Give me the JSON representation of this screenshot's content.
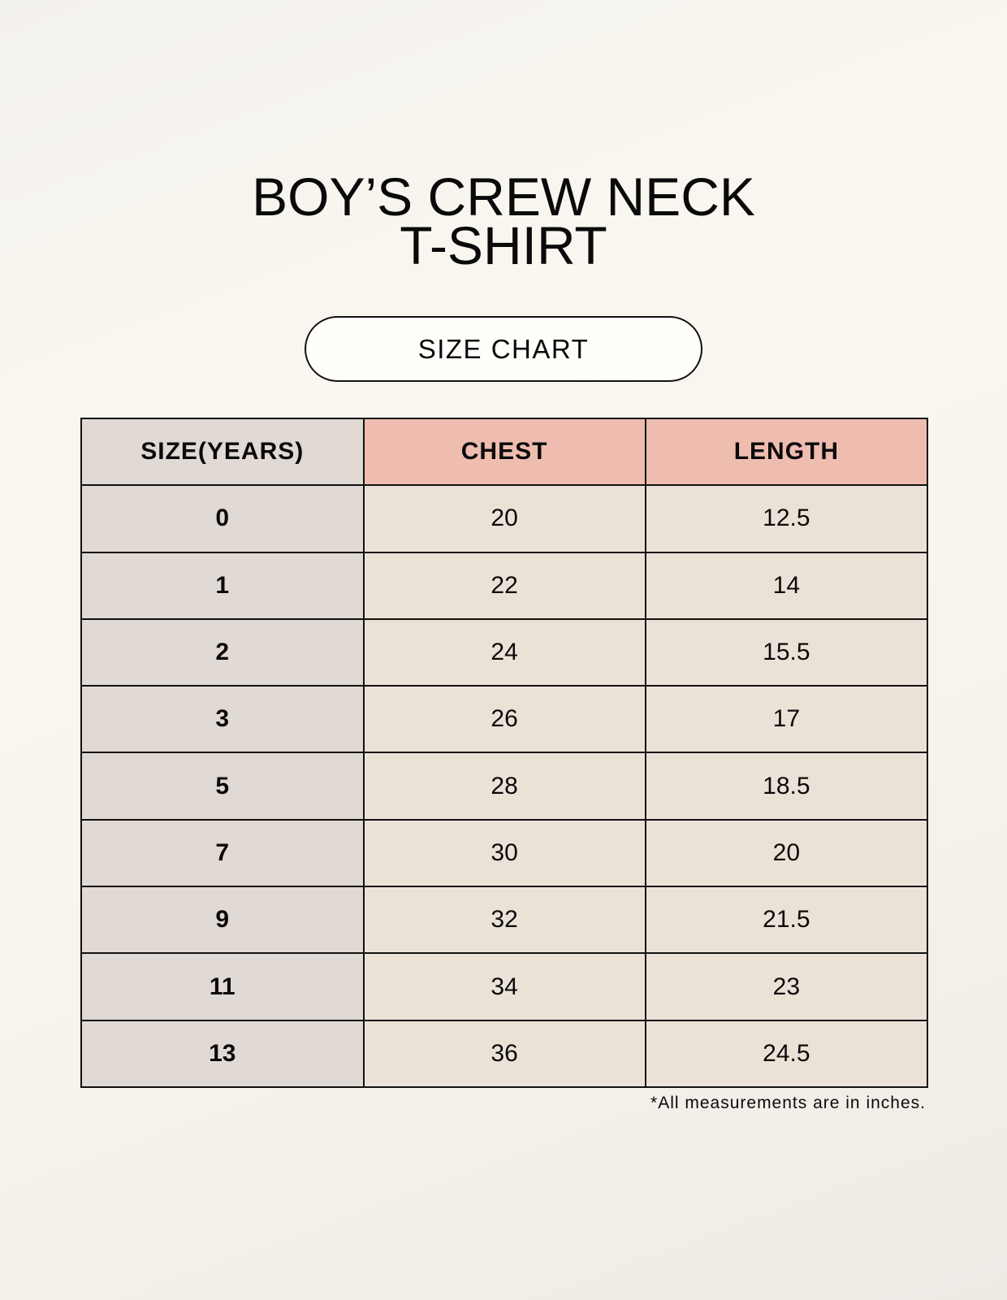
{
  "title": {
    "line1": "BOY’S CREW NECK",
    "line2": "T-SHIRT"
  },
  "subtitle": "SIZE CHART",
  "table": {
    "headers": [
      "SIZE(YEARS)",
      "CHEST",
      "LENGTH"
    ],
    "rows": [
      [
        "0",
        "20",
        "12.5"
      ],
      [
        "1",
        "22",
        "14"
      ],
      [
        "2",
        "24",
        "15.5"
      ],
      [
        "3",
        "26",
        "17"
      ],
      [
        "5",
        "28",
        "18.5"
      ],
      [
        "7",
        "30",
        "20"
      ],
      [
        "9",
        "32",
        "21.5"
      ],
      [
        "11",
        "34",
        "23"
      ],
      [
        "13",
        "36",
        "24.5"
      ]
    ]
  },
  "footnote": "*All measurements are in inches.",
  "colors": {
    "header_accent": "#eebdaf",
    "size_column": "#e1d9d3",
    "cells": "#ebe2d7"
  }
}
